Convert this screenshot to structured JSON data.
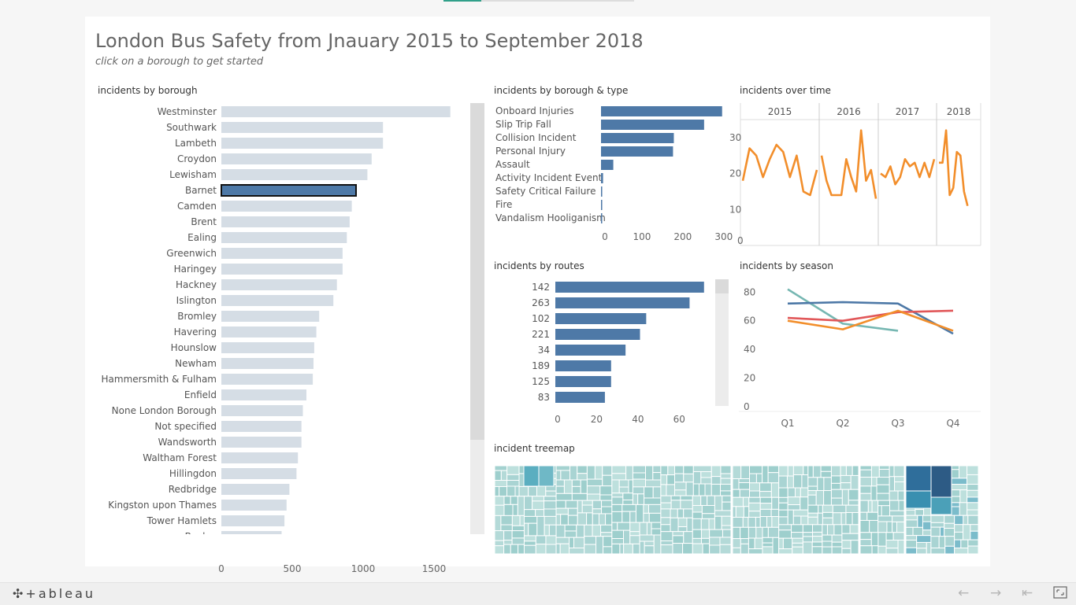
{
  "header": {
    "title": "London Bus Safety from Jnauary 2015 to September 2018",
    "subtitle": "click on a borough to get started"
  },
  "panels": {
    "borough": "incidents by borough",
    "type": "incidents by borough & type",
    "time": "incidents over time",
    "routes": "incidents by routes",
    "season": "incidents by season",
    "treemap": "incident treemap"
  },
  "footer": {
    "logo": "+ableau"
  },
  "icons": [
    "tableau-logo-icon",
    "undo-icon",
    "redo-icon",
    "revert-icon",
    "fullscreen-icon"
  ],
  "colors": {
    "bar_default": "#d5dde5",
    "bar_highlight": "#4e79a7",
    "line_orange": "#f28e2b",
    "teal": "#76b7b2",
    "red": "#e15759",
    "blue": "#4e79a7"
  },
  "chart_data": [
    {
      "id": "borough",
      "type": "bar",
      "orientation": "horizontal",
      "title": "incidents by borough",
      "categories": [
        "Westminster",
        "Southwark",
        "Lambeth",
        "Croydon",
        "Lewisham",
        "Barnet",
        "Camden",
        "Brent",
        "Ealing",
        "Greenwich",
        "Haringey",
        "Hackney",
        "Islington",
        "Bromley",
        "Havering",
        "Hounslow",
        "Newham",
        "Hammersmith & Fulham",
        "Enfield",
        "None London Borough",
        "Not specified",
        "Wandsworth",
        "Waltham Forest",
        "Hillingdon",
        "Redbridge",
        "Kingston upon Thames",
        "Tower Hamlets",
        "Bexley"
      ],
      "values": [
        1615,
        1140,
        1140,
        1060,
        1030,
        950,
        920,
        905,
        885,
        855,
        855,
        815,
        790,
        690,
        670,
        655,
        650,
        645,
        600,
        575,
        565,
        565,
        540,
        530,
        480,
        460,
        445,
        425
      ],
      "selected": "Barnet",
      "xticks": [
        0,
        500,
        1000,
        1500
      ],
      "xlim": [
        0,
        1750
      ]
    },
    {
      "id": "type",
      "type": "bar",
      "orientation": "horizontal",
      "title": "incidents by borough & type",
      "categories": [
        "Onboard Injuries",
        "Slip Trip Fall",
        "Collision Incident",
        "Personal Injury",
        "Assault",
        "Activity Incident Event",
        "Safety Critical Failure",
        "Fire",
        "Vandalism Hooliganism"
      ],
      "values": [
        296,
        252,
        178,
        176,
        30,
        5,
        2,
        2,
        1
      ],
      "xticks": [
        0,
        100,
        200,
        300
      ],
      "xlim": [
        0,
        310
      ]
    },
    {
      "id": "time",
      "type": "line",
      "title": "incidents over time",
      "panels": [
        {
          "year": "2015",
          "values": [
            18,
            27,
            25,
            19,
            24,
            28,
            26,
            19,
            25,
            15,
            14,
            21
          ]
        },
        {
          "year": "2016",
          "values": [
            25,
            18,
            14,
            14,
            14,
            24,
            19,
            15,
            32,
            18,
            21,
            13
          ]
        },
        {
          "year": "2017",
          "values": [
            20,
            19,
            22,
            17,
            19,
            24,
            22,
            23,
            19,
            23,
            19,
            24
          ]
        },
        {
          "year": "2018",
          "values": [
            23,
            23,
            32,
            14,
            16,
            26,
            25,
            15,
            11
          ]
        }
      ],
      "yticks": [
        0,
        10,
        20,
        30
      ],
      "ylim": [
        0,
        35
      ]
    },
    {
      "id": "routes",
      "type": "bar",
      "orientation": "horizontal",
      "title": "incidents by routes",
      "categories": [
        "142",
        "263",
        "102",
        "221",
        "34",
        "189",
        "125",
        "83"
      ],
      "values": [
        72,
        65,
        44,
        41,
        34,
        27,
        27,
        24
      ],
      "xticks": [
        0,
        20,
        40,
        60
      ],
      "xlim": [
        0,
        82
      ]
    },
    {
      "id": "season",
      "type": "line",
      "title": "incidents by season",
      "categories": [
        "Q1",
        "Q2",
        "Q3",
        "Q4"
      ],
      "series": [
        {
          "color": "#76b7b2",
          "values": [
            82,
            58,
            53,
            null
          ]
        },
        {
          "color": "#4e79a7",
          "values": [
            72,
            73,
            72,
            51
          ]
        },
        {
          "color": "#e15759",
          "values": [
            62,
            60,
            66,
            67
          ]
        },
        {
          "color": "#f28e2b",
          "values": [
            60,
            54,
            67,
            53
          ]
        }
      ],
      "yticks": [
        0,
        20,
        40,
        60,
        80
      ],
      "ylim": [
        0,
        84
      ]
    },
    {
      "id": "treemap",
      "type": "heatmap",
      "title": "incident treemap"
    }
  ]
}
